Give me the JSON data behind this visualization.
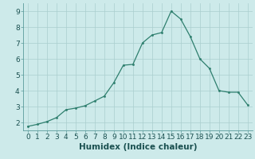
{
  "x": [
    0,
    1,
    2,
    3,
    4,
    5,
    6,
    7,
    8,
    9,
    10,
    11,
    12,
    13,
    14,
    15,
    16,
    17,
    18,
    19,
    20,
    21,
    22,
    23
  ],
  "y": [
    1.75,
    1.88,
    2.05,
    2.3,
    2.8,
    2.9,
    3.05,
    3.35,
    3.65,
    4.5,
    5.6,
    5.65,
    7.0,
    7.5,
    7.65,
    9.0,
    8.5,
    7.4,
    6.0,
    5.4,
    4.0,
    3.9,
    3.9,
    3.1
  ],
  "xlabel": "Humidex (Indice chaleur)",
  "xlim": [
    -0.5,
    23.5
  ],
  "ylim": [
    1.5,
    9.5
  ],
  "yticks": [
    2,
    3,
    4,
    5,
    6,
    7,
    8,
    9
  ],
  "xticks": [
    0,
    1,
    2,
    3,
    4,
    5,
    6,
    7,
    8,
    9,
    10,
    11,
    12,
    13,
    14,
    15,
    16,
    17,
    18,
    19,
    20,
    21,
    22,
    23
  ],
  "line_color": "#2e7f6e",
  "marker_color": "#2e7f6e",
  "bg_color": "#cdeaea",
  "grid_color": "#aacece",
  "xlabel_fontsize": 7.5,
  "tick_fontsize": 6.5
}
